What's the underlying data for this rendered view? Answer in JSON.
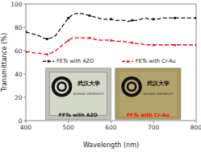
{
  "chart_data": {
    "type": "line",
    "x_label": "Wavelength (nm)",
    "y_label": "Transmittance (%)",
    "x": [
      400,
      410,
      420,
      430,
      440,
      450,
      460,
      470,
      480,
      490,
      500,
      510,
      520,
      530,
      540,
      550,
      560,
      570,
      580,
      590,
      600,
      610,
      620,
      630,
      640,
      650,
      660,
      670,
      680,
      690,
      700,
      710,
      720,
      730,
      740,
      750,
      760,
      770,
      780,
      790,
      800
    ],
    "series": [
      {
        "name": "FETs with AZO",
        "color": "#1a1a1a",
        "line_style": "dashed",
        "marker": "square",
        "values": [
          76,
          75,
          74,
          73,
          71,
          70,
          71,
          73,
          78,
          83,
          88,
          91,
          92,
          92,
          91,
          90,
          89,
          88,
          87,
          87,
          87,
          86,
          86,
          86,
          85,
          86,
          86,
          87,
          88,
          87,
          87,
          87,
          88,
          88,
          88,
          88,
          88,
          88,
          88,
          88,
          88
        ]
      },
      {
        "name": "FETs with Cr-Au",
        "color": "#ff0000",
        "line_style": "dashed",
        "marker": "triangle",
        "values": [
          59,
          59,
          58,
          58,
          57,
          57,
          58,
          60,
          63,
          66,
          69,
          71,
          71,
          71,
          71,
          71,
          70,
          69,
          69,
          69,
          69,
          68,
          68,
          68,
          67,
          67,
          66,
          66,
          65,
          65,
          65,
          65,
          65,
          65,
          65,
          65,
          65,
          65,
          65,
          65,
          65
        ]
      }
    ],
    "xlim": [
      400,
      800
    ],
    "ylim": [
      0,
      100
    ],
    "xticks": [
      400,
      500,
      600,
      700,
      800
    ],
    "yticks": [
      0,
      20,
      40,
      60,
      80,
      100
    ],
    "legend": "center",
    "annotations": [
      "武汉大学",
      "WUHAN UNIVERSITY",
      "FFTs with AZO",
      "武汉大学",
      "WUHAN UNIVERSITY",
      "FFTs with Cr-Au"
    ]
  }
}
